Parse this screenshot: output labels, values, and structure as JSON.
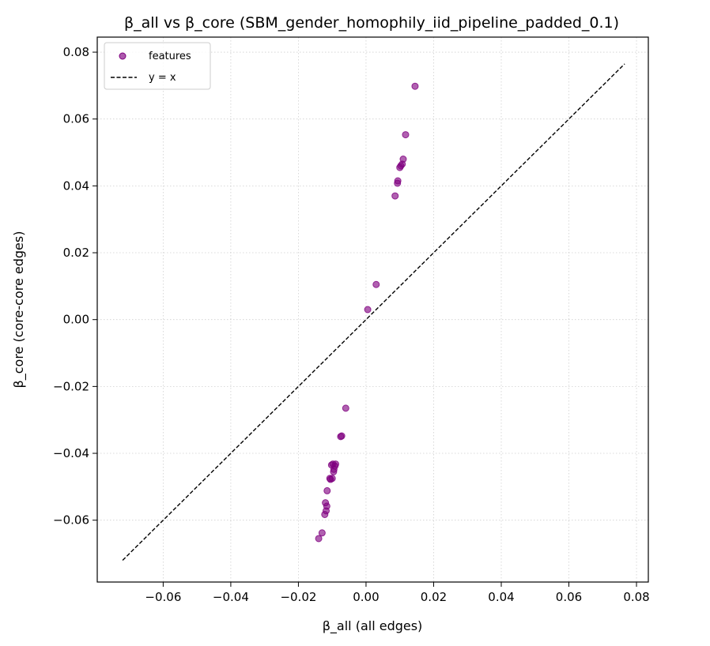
{
  "chart_data": {
    "type": "scatter",
    "title": "β_all vs β_core (SBM_gender_homophily_iid_pipeline_padded_0.1)",
    "xlabel": "β_all (all edges)",
    "ylabel": "β_core (core-core edges)",
    "xlim": [
      -0.0795,
      0.0835
    ],
    "ylim": [
      -0.0785,
      0.0845
    ],
    "xticks": [
      -0.06,
      -0.04,
      -0.02,
      0.0,
      0.02,
      0.04,
      0.06,
      0.08
    ],
    "yticks": [
      -0.06,
      -0.04,
      -0.02,
      0.0,
      0.02,
      0.04,
      0.06,
      0.08
    ],
    "xtick_labels": [
      "−0.06",
      "−0.04",
      "−0.02",
      "0.00",
      "0.02",
      "0.04",
      "0.06",
      "0.08"
    ],
    "ytick_labels": [
      "−0.06",
      "−0.04",
      "−0.02",
      "0.00",
      "0.02",
      "0.04",
      "0.06",
      "0.08"
    ],
    "grid": true,
    "legend_position": "top-left",
    "series": [
      {
        "name": "features",
        "kind": "scatter",
        "color": "#800080",
        "x": [
          0.0145,
          0.0117,
          0.011,
          0.0107,
          0.0103,
          0.01,
          0.0094,
          0.0093,
          0.0086,
          0.003,
          0.0005,
          -0.006,
          -0.0072,
          -0.0075,
          -0.009,
          -0.0092,
          -0.0095,
          -0.0096,
          -0.0098,
          -0.01,
          -0.0102,
          -0.0105,
          -0.0107,
          -0.0115,
          -0.0116,
          -0.0118,
          -0.012,
          -0.0122,
          -0.013,
          -0.014
        ],
        "y": [
          0.0698,
          0.0553,
          0.048,
          0.0465,
          0.046,
          0.0455,
          0.0415,
          0.0408,
          0.037,
          0.0105,
          0.003,
          -0.0265,
          -0.0348,
          -0.035,
          -0.0432,
          -0.0438,
          -0.0448,
          -0.0455,
          -0.0432,
          -0.0475,
          -0.0435,
          -0.0478,
          -0.0475,
          -0.0512,
          -0.0558,
          -0.0572,
          -0.0548,
          -0.0583,
          -0.0638,
          -0.0655
        ]
      },
      {
        "name": "y = x",
        "kind": "line",
        "color": "#000000",
        "x": [
          -0.072,
          0.0765
        ],
        "y": [
          -0.072,
          0.0765
        ]
      }
    ]
  }
}
